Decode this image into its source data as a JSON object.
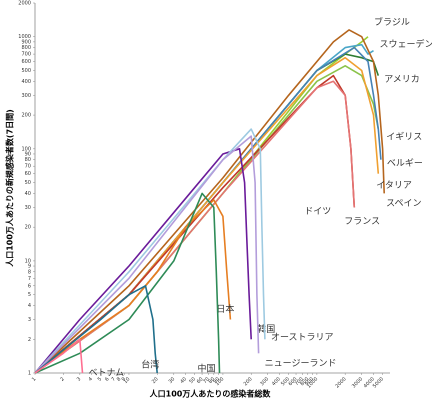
{
  "chart_data": {
    "type": "line",
    "log_x": true,
    "log_y": true,
    "x_label": "人口100万人あたりの感染者総数",
    "y_label": "人口100万人あたりの新規感染者数(7日間)",
    "xlim": [
      1,
      6000
    ],
    "ylim": [
      1,
      2000
    ],
    "xticks": [
      1,
      2,
      3,
      4,
      5,
      6,
      7,
      8,
      9,
      10,
      20,
      30,
      40,
      50,
      60,
      70,
      80,
      90,
      100,
      200,
      300,
      400,
      500,
      600,
      700,
      800,
      900,
      1000,
      2000,
      3000,
      4000,
      5000
    ],
    "yticks": [
      1,
      2,
      3,
      4,
      5,
      6,
      7,
      8,
      9,
      10,
      20,
      30,
      40,
      50,
      60,
      70,
      80,
      90,
      100,
      200,
      300,
      400,
      500,
      600,
      700,
      800,
      900,
      1000,
      2000
    ],
    "grid": false,
    "series": [
      {
        "name": "ブラジル",
        "color": "#9acd32",
        "x": [
          1,
          10,
          100,
          1000,
          2000,
          3000,
          3500
        ],
        "values": [
          1,
          4,
          40,
          450,
          700,
          900,
          1000
        ]
      },
      {
        "name": "スウェーデン",
        "color": "#4aa6c8",
        "x": [
          1,
          10,
          100,
          1000,
          2000,
          3000,
          3500,
          4000
        ],
        "values": [
          1,
          5,
          50,
          500,
          800,
          850,
          700,
          750
        ]
      },
      {
        "name": "アメリカ",
        "color": "#2e7d32",
        "x": [
          1,
          10,
          100,
          1000,
          2000,
          3000,
          4000,
          4500
        ],
        "values": [
          1,
          5,
          50,
          500,
          700,
          650,
          600,
          450
        ]
      },
      {
        "name": "イギリス",
        "color": "#8bc34a",
        "x": [
          1,
          10,
          100,
          1000,
          2000,
          3000,
          4000,
          4500
        ],
        "values": [
          1,
          4,
          40,
          400,
          550,
          450,
          250,
          150
        ]
      },
      {
        "name": "ベルギー",
        "color": "#4682b4",
        "x": [
          1,
          10,
          100,
          1000,
          2500,
          3500,
          4000,
          4500,
          4800
        ],
        "values": [
          1,
          5,
          50,
          500,
          800,
          600,
          300,
          150,
          80
        ]
      },
      {
        "name": "スペイン",
        "color": "#b5651d",
        "x": [
          1,
          10,
          100,
          500,
          1500,
          2200,
          3000,
          4000,
          4500,
          5000,
          5200
        ],
        "values": [
          1,
          6,
          55,
          300,
          900,
          1150,
          1000,
          600,
          300,
          100,
          40
        ]
      },
      {
        "name": "イタリア",
        "color": "#f0a030",
        "x": [
          1,
          10,
          100,
          1000,
          2000,
          3000,
          4000,
          4500
        ],
        "values": [
          1,
          5,
          50,
          450,
          650,
          500,
          200,
          60
        ]
      },
      {
        "name": "ドイツ",
        "color": "#c0392b",
        "x": [
          1,
          10,
          100,
          1000,
          1500,
          2000,
          2300,
          2500
        ],
        "values": [
          1,
          5,
          45,
          350,
          450,
          300,
          100,
          30
        ]
      },
      {
        "name": "フランス",
        "color": "#e57373",
        "x": [
          1,
          10,
          100,
          1000,
          1500,
          2000,
          2300,
          2500
        ],
        "values": [
          1,
          4,
          40,
          350,
          400,
          300,
          100,
          30
        ]
      },
      {
        "name": "韓国",
        "color": "#6a1b9a",
        "x": [
          1,
          3,
          10,
          50,
          100,
          150,
          170,
          180,
          190,
          200
        ],
        "values": [
          1,
          3,
          9,
          45,
          90,
          100,
          50,
          15,
          5,
          2
        ]
      },
      {
        "name": "オーストラリア",
        "color": "#9ecae1",
        "x": [
          1,
          10,
          100,
          200,
          250,
          260,
          270,
          280
        ],
        "values": [
          1,
          8,
          80,
          150,
          100,
          20,
          5,
          2
        ]
      },
      {
        "name": "ニュージーランド",
        "color": "#b39ddb",
        "x": [
          1,
          10,
          100,
          200,
          220,
          230,
          240
        ],
        "values": [
          1,
          7,
          80,
          130,
          50,
          5,
          1.5
        ]
      },
      {
        "name": "日本",
        "color": "#e67e22",
        "x": [
          1,
          3,
          10,
          20,
          40,
          80,
          100,
          110,
          120
        ],
        "values": [
          1,
          2,
          4,
          8,
          20,
          35,
          25,
          8,
          3
        ]
      },
      {
        "name": "中国",
        "color": "#2e8b57",
        "x": [
          1,
          3,
          10,
          30,
          60,
          80,
          85,
          90,
          92
        ],
        "values": [
          1,
          1.5,
          3,
          10,
          40,
          30,
          8,
          2,
          1
        ]
      },
      {
        "name": "台湾",
        "color": "#1f6f8b",
        "x": [
          1,
          5,
          10,
          15,
          18,
          19,
          20
        ],
        "values": [
          1,
          3,
          5,
          6,
          3,
          1.5,
          1
        ]
      },
      {
        "name": "ベトナム",
        "color": "#ff6f91",
        "x": [
          1,
          2,
          3,
          3.2
        ],
        "values": [
          1,
          1.5,
          2,
          1
        ]
      }
    ]
  }
}
